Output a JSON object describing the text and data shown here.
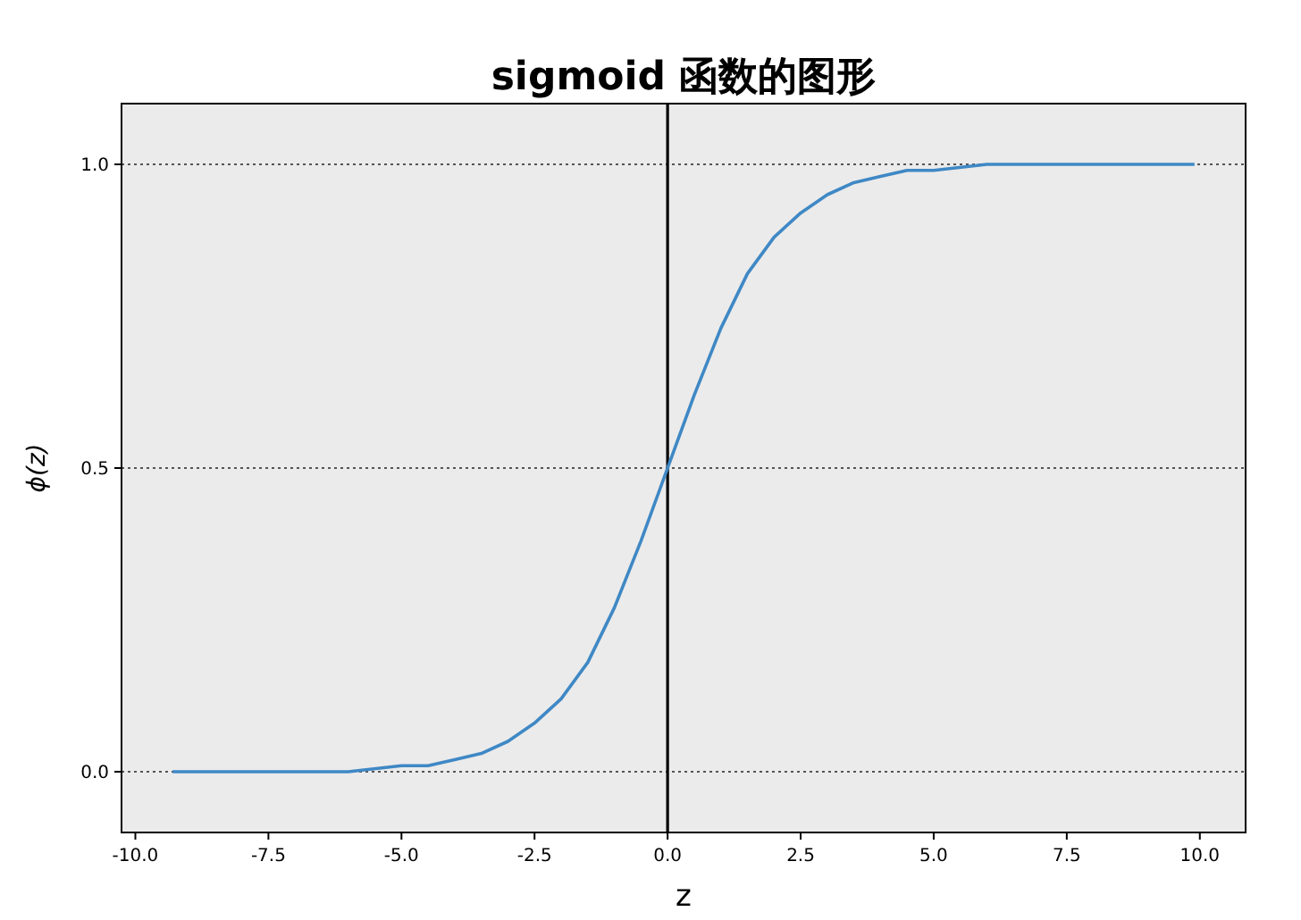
{
  "chart_data": {
    "type": "line",
    "title": "sigmoid 函数的图形",
    "xlabel": "z",
    "ylabel": "ϕ(z)",
    "x": [
      -9.3,
      -8,
      -7,
      -6,
      -5,
      -4.5,
      -4,
      -3.5,
      -3,
      -2.5,
      -2,
      -1.5,
      -1,
      -0.5,
      0,
      0.5,
      1,
      1.5,
      2,
      2.5,
      3,
      3.5,
      4,
      4.5,
      5,
      6,
      7,
      8,
      9.9
    ],
    "series": [
      {
        "color": "#3f88c5",
        "values": [
          0.0,
          0.0,
          0.0,
          0.0,
          0.01,
          0.01,
          0.02,
          0.03,
          0.05,
          0.08,
          0.12,
          0.18,
          0.27,
          0.38,
          0.5,
          0.62,
          0.73,
          0.82,
          0.88,
          0.92,
          0.95,
          0.97,
          0.98,
          0.99,
          0.99,
          1.0,
          1.0,
          1.0,
          1.0
        ]
      }
    ],
    "xlim": [
      -10.26,
      10.86
    ],
    "ylim": [
      -0.1,
      1.1
    ],
    "xticks": [
      {
        "value": -10,
        "label": "-10.0"
      },
      {
        "value": -7.5,
        "label": "-7.5"
      },
      {
        "value": -5,
        "label": "-5.0"
      },
      {
        "value": -2.5,
        "label": "-2.5"
      },
      {
        "value": 0,
        "label": "0.0"
      },
      {
        "value": 2.5,
        "label": "2.5"
      },
      {
        "value": 5,
        "label": "5.0"
      },
      {
        "value": 7.5,
        "label": "7.5"
      },
      {
        "value": 10,
        "label": "10.0"
      }
    ],
    "yticks": [
      {
        "value": 0,
        "label": "0.0"
      },
      {
        "value": 0.5,
        "label": "0.5"
      },
      {
        "value": 1,
        "label": "1.0"
      }
    ],
    "grid": "y",
    "line_style": "solid",
    "marker": "none",
    "ref_lines": [
      {
        "axis": "x",
        "value": 0,
        "color": "#000000",
        "line_style": "solid"
      }
    ]
  }
}
